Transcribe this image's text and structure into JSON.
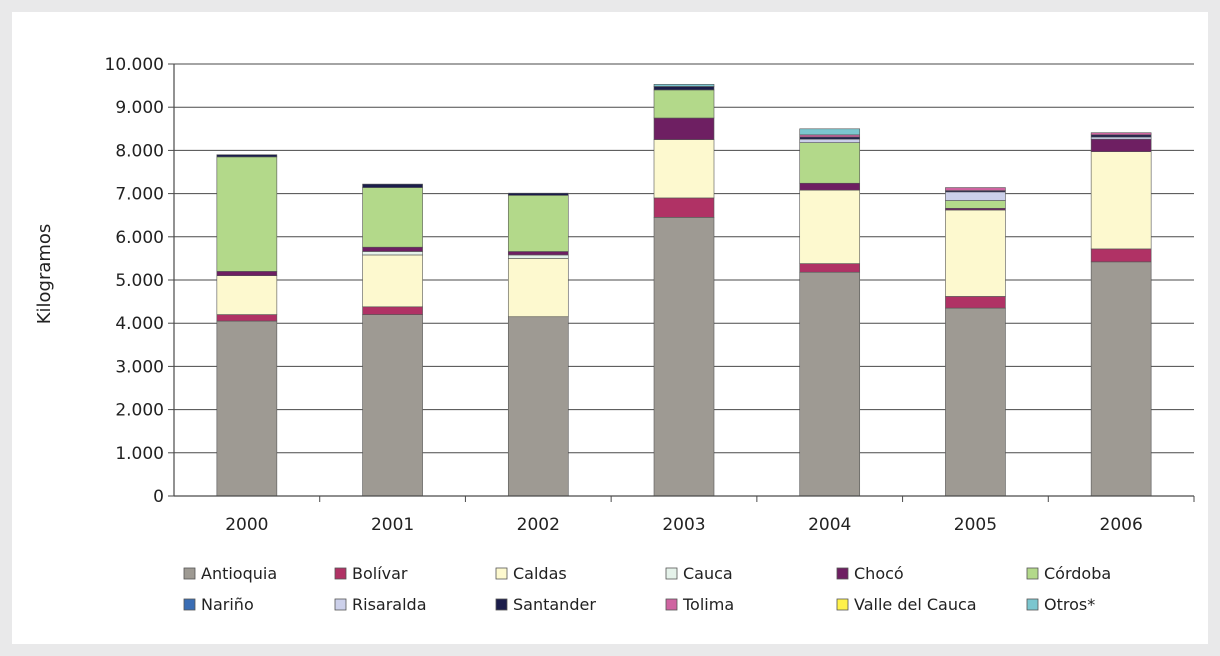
{
  "chart_data": {
    "type": "bar",
    "stacked": true,
    "title": "",
    "xlabel": "",
    "ylabel": "Kilogramos",
    "ylim": [
      0,
      10000
    ],
    "yticks": [
      0,
      1000,
      2000,
      3000,
      4000,
      5000,
      6000,
      7000,
      8000,
      9000,
      10000
    ],
    "ytick_labels": [
      "0",
      "1.000",
      "2.000",
      "3.000",
      "4.000",
      "5.000",
      "6.000",
      "7.000",
      "8.000",
      "9.000",
      "10.000"
    ],
    "grid": true,
    "legend_position": "bottom",
    "categories": [
      "2000",
      "2001",
      "2002",
      "2003",
      "2004",
      "2005",
      "2006"
    ],
    "series": [
      {
        "name": "Antioquia",
        "color": "#9e9a93",
        "values": [
          4050,
          4200,
          4150,
          6450,
          5180,
          4350,
          5420
        ]
      },
      {
        "name": "Bolívar",
        "color": "#b03265",
        "values": [
          150,
          180,
          0,
          450,
          200,
          270,
          300
        ]
      },
      {
        "name": "Caldas",
        "color": "#fdf9cf",
        "values": [
          900,
          1200,
          1350,
          1350,
          1700,
          2000,
          2250
        ]
      },
      {
        "name": "Cauca",
        "color": "#e5f2ea",
        "values": [
          0,
          80,
          80,
          0,
          0,
          0,
          0
        ]
      },
      {
        "name": "Chocó",
        "color": "#6e1f62",
        "values": [
          100,
          100,
          80,
          500,
          160,
          40,
          290
        ]
      },
      {
        "name": "Córdoba",
        "color": "#b3d98a",
        "values": [
          2650,
          1380,
          1300,
          650,
          940,
          180,
          0
        ]
      },
      {
        "name": "Nariño",
        "color": "#3a6db4",
        "values": [
          0,
          0,
          0,
          0,
          0,
          0,
          0
        ]
      },
      {
        "name": "Risaralda",
        "color": "#ccd0ea",
        "values": [
          0,
          0,
          0,
          0,
          80,
          200,
          50
        ]
      },
      {
        "name": "Santander",
        "color": "#1b1d4b",
        "values": [
          50,
          80,
          50,
          80,
          50,
          30,
          50
        ]
      },
      {
        "name": "Tolima",
        "color": "#cf64a1",
        "values": [
          0,
          0,
          0,
          0,
          50,
          70,
          50
        ]
      },
      {
        "name": "Valle del Cauca",
        "color": "#fff24a",
        "values": [
          0,
          0,
          0,
          0,
          0,
          0,
          0
        ]
      },
      {
        "name": "Otros*",
        "color": "#7bc6cf",
        "values": [
          0,
          0,
          0,
          50,
          140,
          0,
          0
        ]
      }
    ]
  }
}
